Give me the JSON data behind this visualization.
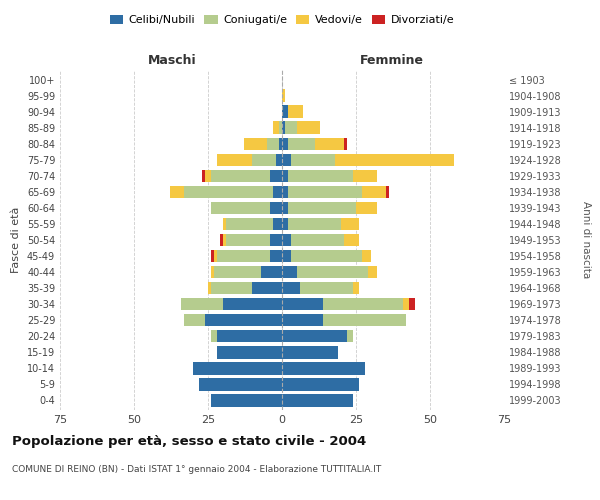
{
  "age_groups": [
    "0-4",
    "5-9",
    "10-14",
    "15-19",
    "20-24",
    "25-29",
    "30-34",
    "35-39",
    "40-44",
    "45-49",
    "50-54",
    "55-59",
    "60-64",
    "65-69",
    "70-74",
    "75-79",
    "80-84",
    "85-89",
    "90-94",
    "95-99",
    "100+"
  ],
  "birth_years": [
    "1999-2003",
    "1994-1998",
    "1989-1993",
    "1984-1988",
    "1979-1983",
    "1974-1978",
    "1969-1973",
    "1964-1968",
    "1959-1963",
    "1954-1958",
    "1949-1953",
    "1944-1948",
    "1939-1943",
    "1934-1938",
    "1929-1933",
    "1924-1928",
    "1919-1923",
    "1914-1918",
    "1909-1913",
    "1904-1908",
    "≤ 1903"
  ],
  "colors": {
    "celibi": "#2e6da4",
    "coniugati": "#b5cc8e",
    "vedovi": "#f5c842",
    "divorziati": "#cc2222"
  },
  "maschi": {
    "celibi": [
      24,
      28,
      30,
      22,
      22,
      26,
      20,
      10,
      7,
      4,
      4,
      3,
      4,
      3,
      4,
      2,
      1,
      0,
      0,
      0,
      0
    ],
    "coniugati": [
      0,
      0,
      0,
      0,
      2,
      7,
      14,
      14,
      16,
      18,
      15,
      16,
      20,
      30,
      20,
      8,
      4,
      1,
      0,
      0,
      0
    ],
    "vedovi": [
      0,
      0,
      0,
      0,
      0,
      0,
      0,
      1,
      1,
      1,
      1,
      1,
      0,
      5,
      2,
      12,
      8,
      2,
      0,
      0,
      0
    ],
    "divorziati": [
      0,
      0,
      0,
      0,
      0,
      0,
      0,
      0,
      0,
      1,
      1,
      0,
      0,
      0,
      1,
      0,
      0,
      0,
      0,
      0,
      0
    ]
  },
  "femmine": {
    "celibi": [
      24,
      26,
      28,
      19,
      22,
      14,
      14,
      6,
      5,
      3,
      3,
      2,
      2,
      2,
      2,
      3,
      2,
      1,
      2,
      0,
      0
    ],
    "coniugati": [
      0,
      0,
      0,
      0,
      2,
      28,
      27,
      18,
      24,
      24,
      18,
      18,
      23,
      25,
      22,
      15,
      9,
      4,
      0,
      0,
      0
    ],
    "vedovi": [
      0,
      0,
      0,
      0,
      0,
      0,
      2,
      2,
      3,
      3,
      5,
      6,
      7,
      8,
      8,
      40,
      10,
      8,
      5,
      1,
      0
    ],
    "divorziati": [
      0,
      0,
      0,
      0,
      0,
      0,
      2,
      0,
      0,
      0,
      0,
      0,
      0,
      1,
      0,
      0,
      1,
      0,
      0,
      0,
      0
    ]
  },
  "xlim": 75,
  "title": "Popolazione per età, sesso e stato civile - 2004",
  "subtitle": "COMUNE DI REINO (BN) - Dati ISTAT 1° gennaio 2004 - Elaborazione TUTTITALIA.IT",
  "ylabel_left": "Fasce di età",
  "ylabel_right": "Anni di nascita",
  "xlabel_left": "Maschi",
  "xlabel_right": "Femmine"
}
